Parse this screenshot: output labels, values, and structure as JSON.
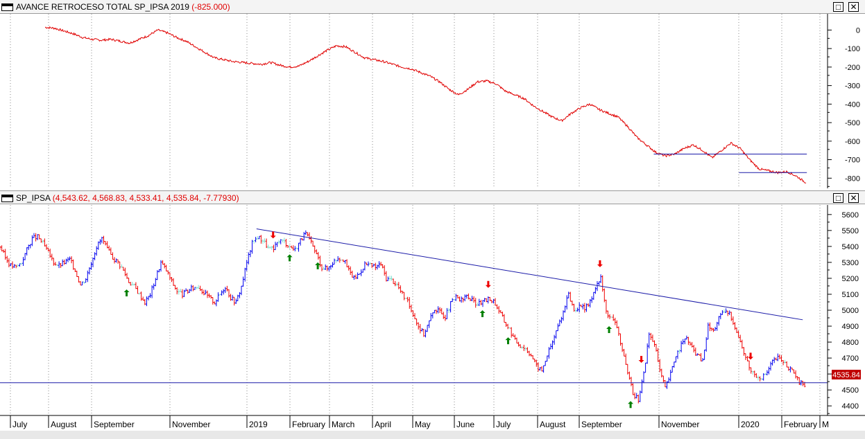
{
  "top_pane": {
    "title": "AVANCE RETROCESO TOTAL SP_IPSA 2019",
    "value": "(-825.000)",
    "maximize_label": "□",
    "close_label": "✕"
  },
  "bottom_pane": {
    "title": "SP_IPSA",
    "value": "(4,543.62, 4,568.83, 4,533.41, 4,535.84, -7.77930)",
    "maximize_label": "□",
    "close_label": "✕",
    "last_price_label": "4535.84"
  },
  "colors": {
    "line": "#e00000",
    "trend": "#1a1aa8",
    "up_bar": "#0000ee",
    "down_bar": "#ee0000",
    "neutral_bar": "#7fe0d0",
    "sell_arrow": "#ee0000",
    "buy_arrow": "#008000",
    "grid": "#888888"
  },
  "x_axis": {
    "labels": [
      "July",
      "August",
      "September",
      "November",
      "2019",
      "February",
      "March",
      "April",
      "May",
      "June",
      "July",
      "August",
      "September",
      "November",
      "2020",
      "February",
      "M"
    ]
  },
  "chart_data": [
    {
      "type": "line",
      "title": "AVANCE RETROCESO TOTAL SP_IPSA 2019",
      "ylim": [
        -825,
        50
      ],
      "yticks": [
        0,
        -100,
        -200,
        -300,
        -400,
        -500,
        -600,
        -700,
        -800
      ],
      "series": [
        {
          "values": [
            15,
            10,
            -5,
            -20,
            -40,
            -50,
            -55,
            -50,
            -60,
            -70,
            -50,
            -30,
            0,
            -15,
            -40,
            -60,
            -90,
            -120,
            -150,
            -160,
            -170,
            -175,
            -180,
            -185,
            -175,
            -190,
            -200,
            -195,
            -170,
            -140,
            -110,
            -85,
            -90,
            -120,
            -150,
            -160,
            -170,
            -185,
            -200,
            -210,
            -230,
            -250,
            -280,
            -320,
            -350,
            -320,
            -280,
            -275,
            -290,
            -330,
            -350,
            -370,
            -410,
            -440,
            -470,
            -490,
            -450,
            -420,
            -400,
            -430,
            -450,
            -470,
            -520,
            -580,
            -620,
            -660,
            -680,
            -670,
            -640,
            -620,
            -650,
            -690,
            -650,
            -610,
            -640,
            -700,
            -750,
            -760,
            -770,
            -765,
            -790,
            -825
          ]
        }
      ],
      "annotations": [
        {
          "type": "hline",
          "y": -670,
          "x_from": 0.79,
          "x_to": 0.975
        },
        {
          "type": "hline",
          "y": -770,
          "x_from": 0.893,
          "x_to": 0.975
        }
      ]
    },
    {
      "type": "candlestick",
      "title": "SP_IPSA",
      "ylim": [
        4340,
        5660
      ],
      "yticks": [
        4400,
        4500,
        4600,
        4700,
        4800,
        4900,
        5000,
        5100,
        5200,
        5300,
        5400,
        5500,
        5600
      ],
      "series": [
        {
          "name": "SP_IPSA",
          "close": [
            5400,
            5330,
            5280,
            5270,
            5300,
            5380,
            5450,
            5460,
            5420,
            5360,
            5300,
            5280,
            5300,
            5320,
            5250,
            5160,
            5200,
            5300,
            5400,
            5450,
            5380,
            5330,
            5300,
            5250,
            5180,
            5150,
            5100,
            5050,
            5100,
            5200,
            5300,
            5250,
            5180,
            5120,
            5100,
            5120,
            5140,
            5150,
            5110,
            5080,
            5050,
            5100,
            5150,
            5080,
            5050,
            5150,
            5300,
            5420,
            5460,
            5440,
            5390,
            5380,
            5440,
            5430,
            5400,
            5380,
            5440,
            5480,
            5420,
            5350,
            5270,
            5260,
            5300,
            5330,
            5320,
            5250,
            5200,
            5230,
            5290,
            5280,
            5270,
            5290,
            5200,
            5190,
            5160,
            5100,
            5050,
            4980,
            4900,
            4850,
            4930,
            5010,
            4990,
            4960,
            5040,
            5080,
            5060,
            5090,
            5060,
            5040,
            5050,
            5070,
            5060,
            5000,
            4930,
            4880,
            4810,
            4780,
            4760,
            4720,
            4650,
            4620,
            4720,
            4800,
            4900,
            4990,
            5100,
            5000,
            5020,
            5010,
            5050,
            5150,
            5200,
            4990,
            4950,
            4900,
            4750,
            4600,
            4480,
            4440,
            4600,
            4850,
            4790,
            4620,
            4510,
            4600,
            4720,
            4780,
            4830,
            4760,
            4720,
            4680,
            4900,
            4870,
            4950,
            4990,
            4980,
            4900,
            4800,
            4700,
            4620,
            4590,
            4580,
            4610,
            4680,
            4700,
            4680,
            4640,
            4600,
            4545,
            4535.84
          ]
        }
      ],
      "annotations": [
        {
          "type": "trendline",
          "x_from": 0.31,
          "y_from": 5510,
          "x_to": 0.97,
          "y_to": 4940
        },
        {
          "type": "hline",
          "y": 4545
        },
        {
          "type": "sell_signals",
          "x": [
            0.33,
            0.59,
            0.725,
            0.775,
            0.907
          ]
        },
        {
          "type": "buy_signals",
          "x": [
            0.153,
            0.35,
            0.384,
            0.583,
            0.614,
            0.736,
            0.762
          ]
        }
      ],
      "last_value": 4535.84
    }
  ]
}
